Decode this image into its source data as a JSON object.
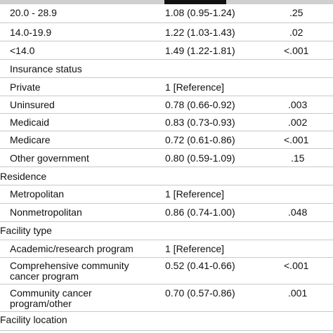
{
  "rows": [
    {
      "label": "20.0 - 28.9",
      "ratio": "1.08 (0.95-1.24)",
      "p": ".25"
    },
    {
      "label": "14.0-19.9",
      "ratio": "1.22 (1.03-1.43)",
      "p": ".02"
    },
    {
      "label": "<14.0",
      "ratio": "1.49 (1.22-1.81)",
      "p": "<.001"
    },
    {
      "label": "Insurance status",
      "ratio": "",
      "p": ""
    },
    {
      "label": "Private",
      "ratio": "1 [Reference]",
      "p": ""
    },
    {
      "label": "Uninsured",
      "ratio": "0.78 (0.66-0.92)",
      "p": ".003"
    },
    {
      "label": "Medicaid",
      "ratio": "0.83 (0.73-0.93)",
      "p": ".002"
    },
    {
      "label": "Medicare",
      "ratio": "0.72 (0.61-0.86)",
      "p": "<.001"
    },
    {
      "label": "Other government",
      "ratio": "0.80 (0.59-1.09)",
      "p": ".15"
    },
    {
      "label": "Residence",
      "ratio": "",
      "p": ""
    },
    {
      "label": "Metropolitan",
      "ratio": "1 [Reference]",
      "p": ""
    },
    {
      "label": "Nonmetropolitan",
      "ratio": "0.86 (0.74-1.00)",
      "p": ".048"
    },
    {
      "label": "Facility type",
      "ratio": "",
      "p": ""
    },
    {
      "label": "Academic/research program",
      "ratio": "1 [Reference]",
      "p": ""
    },
    {
      "label": "Comprehensive community",
      "label2": "cancer program",
      "ratio": "0.52 (0.41-0.66)",
      "p": "<.001"
    },
    {
      "label": "Community cancer",
      "label2": "program/other",
      "ratio": "0.70 (0.57-0.86)",
      "p": ".001"
    },
    {
      "label": "Facility location",
      "ratio": "",
      "p": ""
    }
  ]
}
